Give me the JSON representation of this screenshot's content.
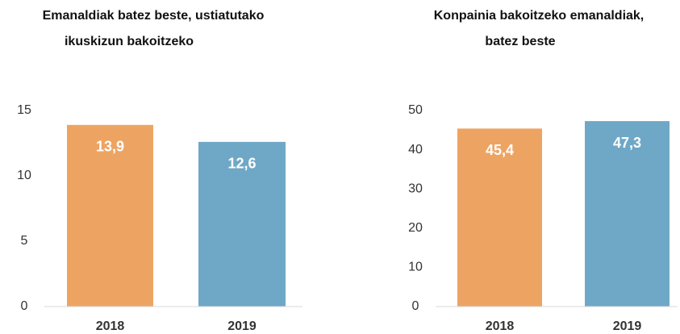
{
  "chart_data": [
    {
      "type": "bar",
      "title": [
        "Emanaldiak batez beste, ustiatutako",
        "ikuskizun bakoitzeko"
      ],
      "categories": [
        "2018",
        "2019"
      ],
      "values": [
        13.9,
        12.6
      ],
      "value_labels": [
        "13,9",
        "12,6"
      ],
      "colors": [
        "#eda463",
        "#6fa8c6"
      ],
      "ylim": [
        0,
        15
      ],
      "yticks": [
        0,
        5,
        10,
        15
      ],
      "grid": false
    },
    {
      "type": "bar",
      "title": [
        "Konpainia bakoitzeko emanaldiak,",
        "batez beste"
      ],
      "categories": [
        "2018",
        "2019"
      ],
      "values": [
        45.4,
        47.3
      ],
      "value_labels": [
        "45,4",
        "47,3"
      ],
      "colors": [
        "#eda463",
        "#6fa8c6"
      ],
      "ylim": [
        0,
        50
      ],
      "yticks": [
        0,
        10,
        20,
        30,
        40,
        50
      ],
      "grid": false
    }
  ]
}
